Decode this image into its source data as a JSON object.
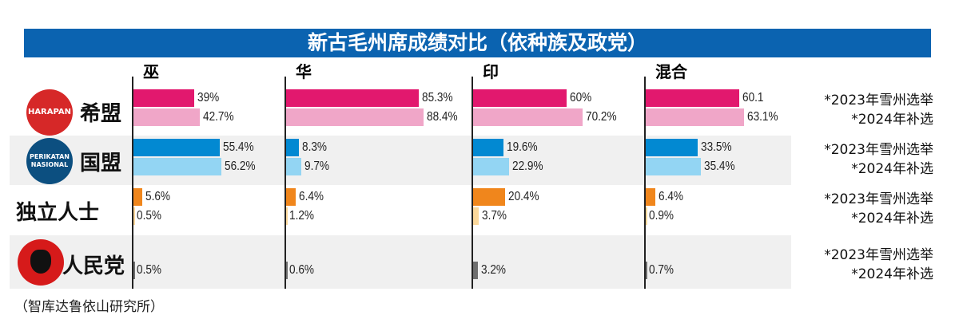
{
  "chart_data": {
    "type": "bar",
    "title": "新古毛州席成绩对比（依种族及政党）",
    "categories": [
      "巫",
      "华",
      "印",
      "混合"
    ],
    "year_labels": [
      "*2023年雪州选举",
      "*2024年补选"
    ],
    "parties": [
      {
        "name": "希盟",
        "logo_text": "HARAPAN",
        "colors": [
          "#e2186e",
          "#f0a6c8"
        ],
        "series": [
          {
            "values": [
              39,
              85.3,
              60,
              60.1
            ],
            "labels": [
              "39%",
              "85.3%",
              "60%",
              "60.1"
            ]
          },
          {
            "values": [
              42.7,
              88.4,
              70.2,
              63.1
            ],
            "labels": [
              "42.7%",
              "88.4%",
              "70.2%",
              "63.1%"
            ]
          }
        ]
      },
      {
        "name": "国盟",
        "logo_text": "PERIKATAN NASIONAL",
        "colors": [
          "#0289d2",
          "#93d5f3"
        ],
        "series": [
          {
            "values": [
              55.4,
              8.3,
              19.6,
              33.5
            ],
            "labels": [
              "55.4%",
              "8.3%",
              "19.6%",
              "33.5%"
            ]
          },
          {
            "values": [
              56.2,
              9.7,
              22.9,
              35.4
            ],
            "labels": [
              "56.2%",
              "9.7%",
              "22.9%",
              "35.4%"
            ]
          }
        ]
      },
      {
        "name": "独立人士",
        "colors": [
          "#f0861c",
          "#fbd89b"
        ],
        "series": [
          {
            "values": [
              5.6,
              6.4,
              20.4,
              6.4
            ],
            "labels": [
              "5.6%",
              "6.4%",
              "20.4%",
              "6.4%"
            ]
          },
          {
            "values": [
              0.5,
              1.2,
              3.7,
              0.9
            ],
            "labels": [
              "0.5%",
              "1.2%",
              "3.7%",
              "0.9%"
            ]
          }
        ]
      },
      {
        "name": "人民党",
        "colors": [
          "#6e6e6e"
        ],
        "series": [
          {
            "values": [
              0.5,
              0.6,
              3.2,
              0.7
            ],
            "labels": [
              "0.5%",
              "0.6%",
              "3.2%",
              "0.7%"
            ]
          }
        ]
      }
    ],
    "xlim": [
      0,
      100
    ],
    "source": "（智库达鲁依山研究所）"
  }
}
